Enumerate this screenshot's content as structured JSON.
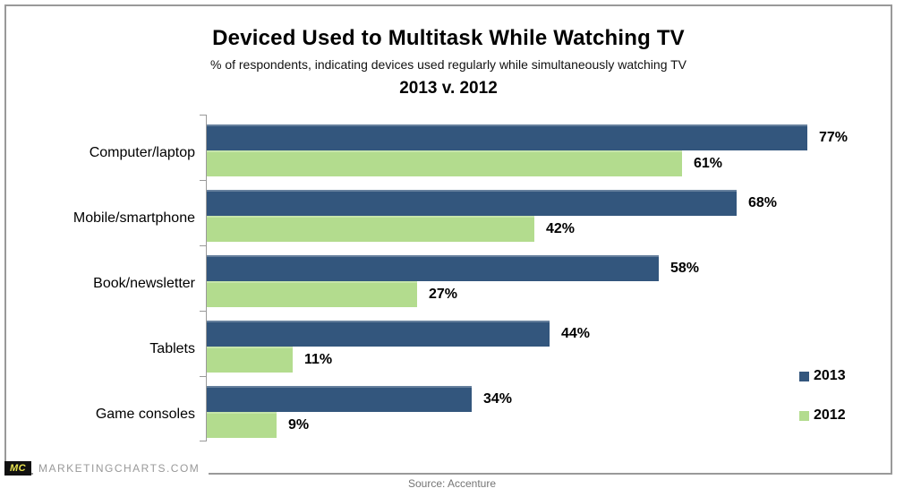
{
  "header": {
    "title": "Deviced Used to Multitask While Watching TV",
    "subtitle": "% of respondents, indicating devices used regularly while simultaneously watching TV",
    "comparison": "2013 v. 2012"
  },
  "chart_data": {
    "type": "bar",
    "orientation": "horizontal",
    "title": "Deviced Used to Multitask While Watching TV",
    "subtitle": "% of respondents, indicating devices used regularly while simultaneously watching TV",
    "comparison_label": "2013 v. 2012",
    "categories": [
      "Computer/laptop",
      "Mobile/smartphone",
      "Book/newsletter",
      "Tablets",
      "Game consoles"
    ],
    "series": [
      {
        "name": "2013",
        "color": "#33567d",
        "values": [
          77,
          68,
          58,
          44,
          34
        ]
      },
      {
        "name": "2012",
        "color": "#b3dc8e",
        "values": [
          61,
          42,
          27,
          11,
          9
        ]
      }
    ],
    "value_suffix": "%",
    "xlabel": "",
    "ylabel": "",
    "xlim": [
      0,
      87.5
    ],
    "grid": false,
    "legend_position": "right",
    "data_labels": true
  },
  "footer": {
    "logo_text": "MC",
    "site_text": "MARKETINGCHARTS.COM",
    "source_text": "Source: Accenture"
  },
  "colors": {
    "series_2013": "#33567d",
    "series_2012": "#b3dc8e",
    "frame_border": "#999999",
    "axis": "#999999",
    "site_text_gray": "#999999",
    "source_gray": "#757575",
    "logo_bg": "#111111",
    "logo_text": "#e9e44f"
  }
}
